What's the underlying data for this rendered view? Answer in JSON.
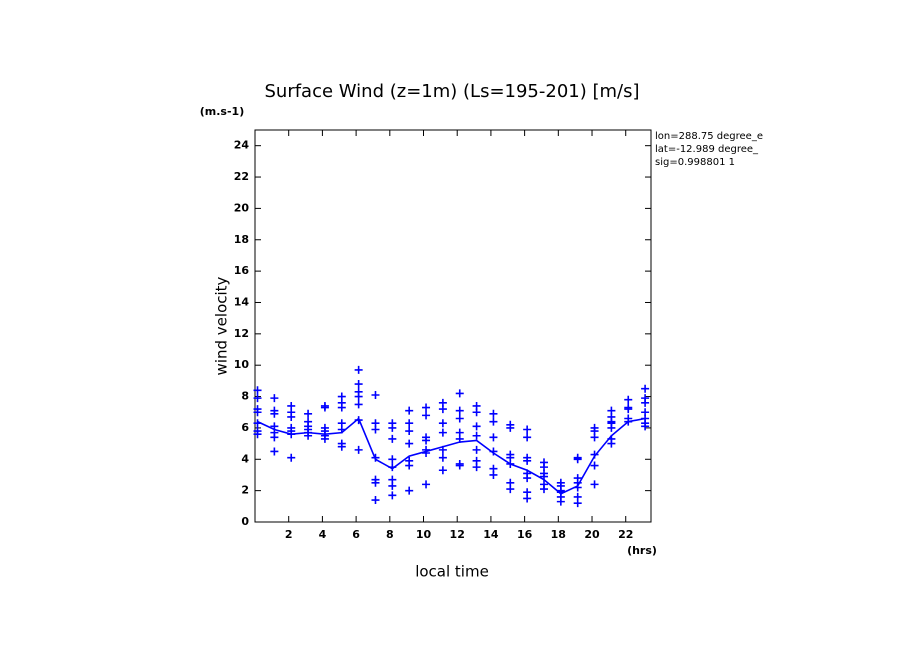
{
  "chart_data": {
    "type": "line",
    "title": "Surface Wind (z=1m) (Ls=195-201) [m/s]",
    "y_unit": "(m.s-1)",
    "y_label": "wind velocity",
    "x_label": "local time",
    "x_unit": "(hrs)",
    "annotations": [
      "lon=288.75 degree_e",
      "lat=-12.989 degree_",
      "sig=0.998801 1"
    ],
    "xlim": [
      0,
      23.5
    ],
    "ylim": [
      0,
      25
    ],
    "xticks": [
      2,
      4,
      6,
      8,
      10,
      12,
      14,
      16,
      18,
      20,
      22
    ],
    "yticks": [
      0,
      2,
      4,
      6,
      8,
      10,
      12,
      14,
      16,
      18,
      20,
      22,
      24
    ],
    "series": [
      {
        "mode": "markers",
        "color": "#0000ff",
        "x": [
          0.15,
          0.15,
          0.15,
          0.15,
          0.15,
          0.15,
          0.15,
          1.15,
          1.15,
          1.15,
          1.15,
          1.15,
          1.15,
          1.15,
          2.15,
          2.15,
          2.15,
          2.15,
          2.15,
          2.15,
          2.15,
          3.15,
          3.15,
          3.15,
          3.15,
          3.15,
          3.15,
          4.15,
          4.15,
          4.15,
          4.15,
          4.15,
          4.15,
          5.15,
          5.15,
          5.15,
          5.15,
          5.15,
          5.15,
          5.15,
          6.15,
          6.15,
          6.15,
          6.15,
          6.15,
          6.15,
          6.15,
          7.15,
          7.15,
          7.15,
          7.15,
          7.15,
          7.15,
          7.15,
          8.15,
          8.15,
          8.15,
          8.15,
          8.15,
          8.15,
          8.15,
          8.15,
          9.15,
          9.15,
          9.15,
          9.15,
          9.15,
          9.15,
          9.15,
          10.15,
          10.15,
          10.15,
          10.15,
          10.15,
          10.15,
          10.15,
          11.15,
          11.15,
          11.15,
          11.15,
          11.15,
          11.15,
          11.15,
          12.15,
          12.15,
          12.15,
          12.15,
          12.15,
          12.15,
          12.15,
          13.15,
          13.15,
          13.15,
          13.15,
          13.15,
          13.15,
          13.15,
          14.15,
          14.15,
          14.15,
          14.15,
          14.15,
          14.15,
          15.15,
          15.15,
          15.15,
          15.15,
          15.15,
          15.15,
          15.15,
          16.15,
          16.15,
          16.15,
          16.15,
          16.15,
          16.15,
          16.15,
          16.15,
          17.15,
          17.15,
          17.15,
          17.15,
          17.15,
          17.15,
          18.15,
          18.15,
          18.15,
          18.15,
          18.15,
          18.15,
          19.15,
          19.15,
          19.15,
          19.15,
          19.15,
          19.15,
          19.15,
          20.15,
          20.15,
          20.15,
          20.15,
          20.15,
          20.15,
          21.15,
          21.15,
          21.15,
          21.15,
          21.15,
          21.15,
          21.15,
          22.15,
          22.15,
          22.15,
          22.15,
          22.15,
          23.15,
          23.15,
          23.15,
          23.15,
          23.15,
          23.15,
          23.15
        ],
        "values": [
          8.4,
          7.9,
          7.2,
          7.0,
          6.3,
          5.8,
          5.6,
          7.9,
          7.1,
          6.9,
          6.1,
          5.7,
          5.4,
          4.5,
          7.4,
          7.0,
          6.7,
          6.0,
          5.8,
          5.6,
          4.1,
          6.9,
          6.4,
          6.1,
          5.9,
          5.7,
          5.5,
          7.4,
          7.3,
          6.0,
          5.8,
          5.5,
          5.3,
          8.0,
          7.6,
          7.3,
          6.3,
          5.9,
          5.0,
          4.8,
          9.7,
          8.8,
          8.3,
          8.0,
          7.5,
          6.5,
          4.6,
          8.1,
          6.3,
          5.9,
          4.1,
          2.7,
          2.5,
          1.4,
          6.3,
          6.0,
          5.3,
          4.0,
          3.5,
          2.7,
          2.3,
          1.7,
          7.1,
          6.3,
          5.8,
          5.0,
          3.9,
          3.6,
          2.0,
          7.3,
          6.8,
          5.4,
          5.2,
          4.6,
          4.4,
          2.4,
          7.6,
          7.2,
          6.3,
          5.7,
          4.6,
          4.1,
          3.3,
          8.2,
          7.1,
          6.6,
          5.7,
          5.3,
          3.7,
          3.6,
          7.4,
          7.0,
          6.1,
          5.5,
          4.6,
          3.9,
          3.5,
          6.9,
          6.4,
          5.4,
          4.5,
          3.4,
          3.0,
          6.2,
          6.0,
          4.3,
          4.1,
          3.7,
          2.5,
          2.1,
          5.9,
          5.4,
          4.1,
          3.9,
          3.1,
          2.8,
          1.9,
          1.5,
          3.8,
          3.5,
          3.1,
          2.9,
          2.4,
          2.1,
          2.5,
          2.3,
          2.0,
          1.9,
          1.6,
          1.3,
          4.1,
          4.0,
          2.8,
          2.5,
          2.2,
          1.6,
          1.2,
          6.0,
          5.8,
          5.4,
          4.3,
          3.6,
          2.4,
          7.1,
          6.7,
          6.4,
          6.3,
          6.0,
          5.3,
          5.0,
          7.8,
          7.3,
          7.2,
          6.6,
          6.4,
          8.5,
          7.9,
          7.6,
          7.0,
          6.6,
          6.3,
          6.1
        ]
      },
      {
        "mode": "lines",
        "color": "#0000ff",
        "x": [
          0.15,
          1.15,
          2.15,
          3.15,
          4.15,
          5.15,
          6.15,
          7.15,
          8.15,
          9.15,
          10.15,
          11.15,
          12.15,
          13.15,
          14.15,
          15.15,
          16.15,
          17.15,
          18.15,
          19.15,
          20.15,
          21.15,
          22.15,
          23.15
        ],
        "values": [
          6.4,
          5.9,
          5.6,
          5.7,
          5.6,
          5.7,
          6.6,
          4.0,
          3.4,
          4.2,
          4.5,
          4.8,
          5.1,
          5.2,
          4.4,
          3.7,
          3.3,
          2.7,
          1.8,
          2.3,
          4.2,
          5.5,
          6.4,
          6.6
        ]
      }
    ]
  }
}
